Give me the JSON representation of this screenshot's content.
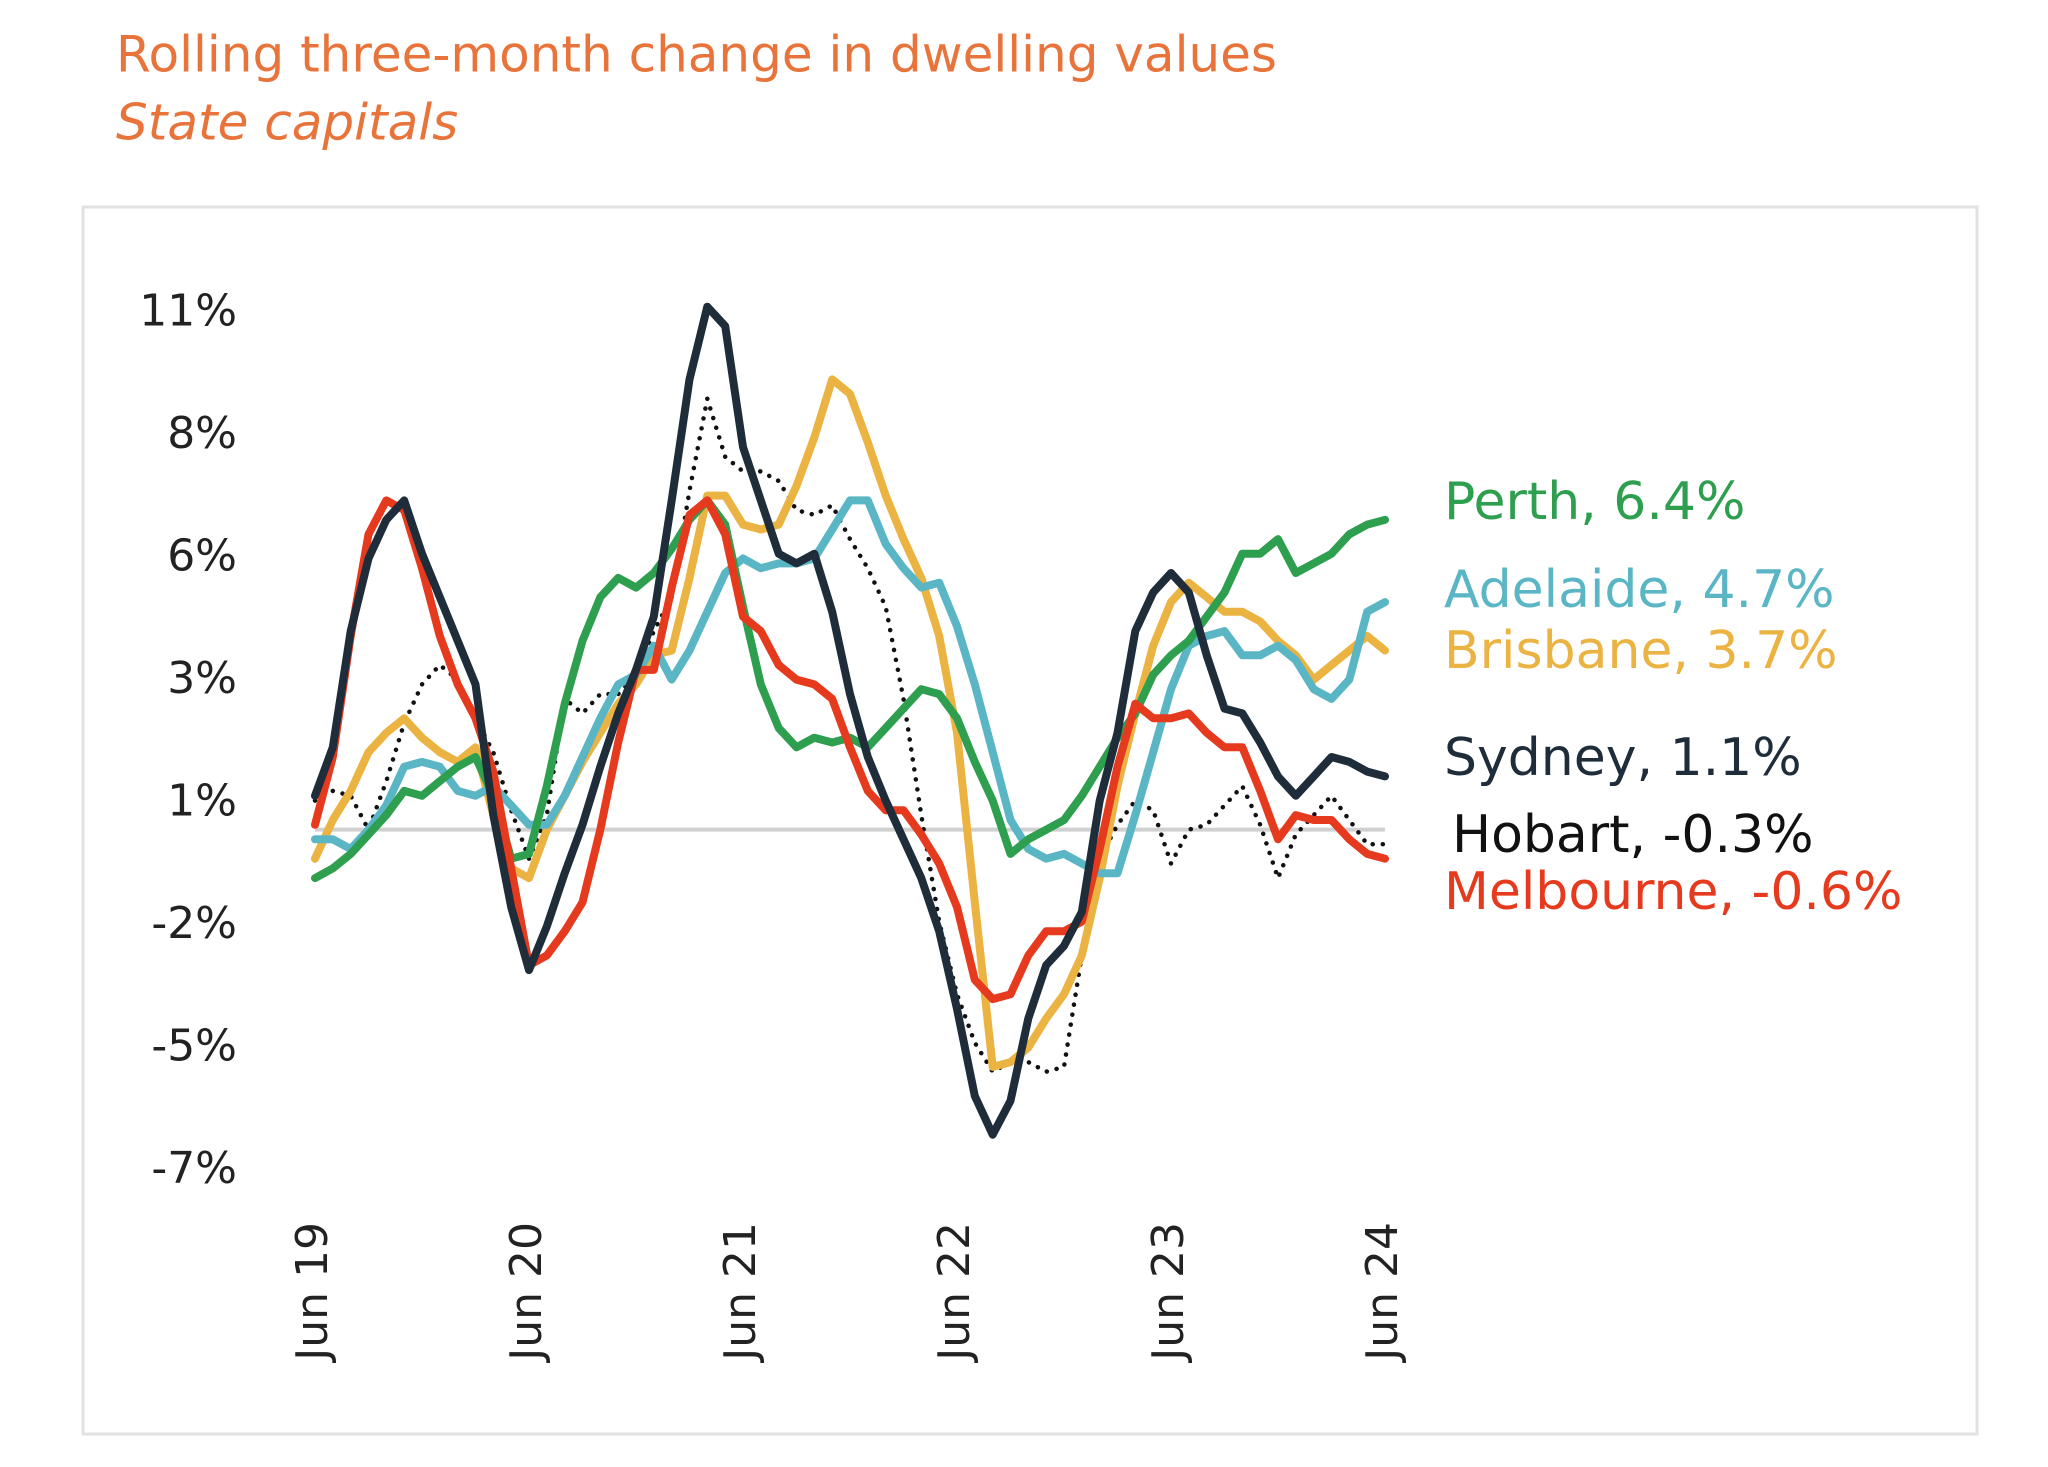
{
  "chart_data": {
    "type": "line",
    "title": "Rolling three-month change in dwelling values",
    "subtitle": "State capitals",
    "categories": [
      "Jun 19",
      null,
      null,
      null,
      null,
      null,
      null,
      null,
      null,
      null,
      null,
      null,
      "Jun 20",
      null,
      null,
      null,
      null,
      null,
      null,
      null,
      null,
      null,
      null,
      null,
      "Jun 21",
      null,
      null,
      null,
      null,
      null,
      null,
      null,
      null,
      null,
      null,
      null,
      "Jun 22",
      null,
      null,
      null,
      null,
      null,
      null,
      null,
      null,
      null,
      null,
      null,
      "Jun 23",
      null,
      null,
      null,
      null,
      null,
      null,
      null,
      null,
      null,
      null,
      null,
      "Jun 24"
    ],
    "ylim": [
      -8,
      11.6
    ],
    "yticks": [
      {
        "value": 10.66,
        "label": "11%"
      },
      {
        "value": 8.13,
        "label": "8%"
      },
      {
        "value": 5.6,
        "label": "6%"
      },
      {
        "value": 3.07,
        "label": "3%"
      },
      {
        "value": 0.54,
        "label": "1%"
      },
      {
        "value": -1.99,
        "label": "-2%"
      },
      {
        "value": -4.52,
        "label": "-5%"
      },
      {
        "value": -7.05,
        "label": "-7%"
      }
    ],
    "series": [
      {
        "name": "Hobart, -0.3%",
        "color": "#111111",
        "dashed": true,
        "values": [
          0.6,
          0.8,
          0.7,
          0.0,
          1.0,
          2.2,
          3.0,
          3.4,
          3.1,
          2.3,
          1.6,
          0.4,
          -0.6,
          0.3,
          2.7,
          2.4,
          2.8,
          2.8,
          3.2,
          4.1,
          4.8,
          7.0,
          8.9,
          7.7,
          7.4,
          7.4,
          7.2,
          6.6,
          6.5,
          6.7,
          6.0,
          5.4,
          4.6,
          2.7,
          0.3,
          -1.9,
          -3.4,
          -4.4,
          -5.0,
          -4.8,
          -4.8,
          -5.0,
          -4.9,
          -2.6,
          -0.6,
          0.1,
          0.6,
          0.4,
          -0.7,
          0.0,
          0.1,
          0.5,
          0.9,
          0.1,
          -1.0,
          -0.1,
          0.3,
          0.7,
          0.2,
          -0.3,
          -0.3
        ]
      },
      {
        "name": "Brisbane, 3.7%",
        "color": "#ebb342",
        "values": [
          -0.6,
          0.2,
          0.8,
          1.6,
          2.0,
          2.3,
          1.9,
          1.6,
          1.4,
          1.7,
          0.3,
          -0.8,
          -1.0,
          0.0,
          0.7,
          1.4,
          2.0,
          2.6,
          3.0,
          3.6,
          3.7,
          5.2,
          6.9,
          6.9,
          6.3,
          6.2,
          6.3,
          7.1,
          8.1,
          9.3,
          9.0,
          8.0,
          6.9,
          6.0,
          5.2,
          4.0,
          2.0,
          -1.5,
          -4.9,
          -4.8,
          -4.5,
          -3.9,
          -3.4,
          -2.6,
          -1.0,
          0.9,
          2.4,
          3.8,
          4.7,
          5.1,
          4.8,
          4.5,
          4.5,
          4.3,
          3.9,
          3.6,
          3.1,
          3.4,
          3.7,
          4.0,
          3.7
        ]
      },
      {
        "name": "Adelaide, 4.7%",
        "color": "#5ab5c4",
        "values": [
          -0.2,
          -0.2,
          -0.4,
          0.0,
          0.5,
          1.3,
          1.4,
          1.3,
          0.8,
          0.7,
          0.9,
          0.5,
          0.1,
          0.1,
          0.7,
          1.5,
          2.3,
          3.0,
          3.2,
          3.8,
          3.1,
          3.7,
          4.5,
          5.3,
          5.6,
          5.4,
          5.5,
          5.5,
          5.6,
          6.2,
          6.8,
          6.8,
          5.9,
          5.4,
          5.0,
          5.1,
          4.2,
          3.0,
          1.6,
          0.2,
          -0.4,
          -0.6,
          -0.5,
          -0.7,
          -0.9,
          -0.9,
          0.3,
          1.6,
          2.9,
          3.8,
          4.0,
          4.1,
          3.6,
          3.6,
          3.8,
          3.5,
          2.9,
          2.7,
          3.1,
          4.5,
          4.7
        ]
      },
      {
        "name": "Perth, 6.4%",
        "color": "#2e9e4f",
        "values": [
          -1.0,
          -0.8,
          -0.5,
          -0.1,
          0.3,
          0.8,
          0.7,
          1.0,
          1.3,
          1.5,
          0.7,
          -0.6,
          -0.5,
          0.9,
          2.6,
          3.9,
          4.8,
          5.2,
          5.0,
          5.3,
          5.8,
          6.4,
          6.8,
          6.3,
          4.6,
          3.0,
          2.1,
          1.7,
          1.9,
          1.8,
          1.9,
          1.7,
          2.1,
          2.5,
          2.9,
          2.8,
          2.3,
          1.4,
          0.6,
          -0.5,
          -0.2,
          0.0,
          0.2,
          0.7,
          1.3,
          1.9,
          2.4,
          3.2,
          3.6,
          3.9,
          4.4,
          4.9,
          5.7,
          5.7,
          6.0,
          5.3,
          5.5,
          5.7,
          6.1,
          6.3,
          6.4
        ]
      },
      {
        "name": "Melbourne, -0.6%",
        "color": "#e63a1e",
        "values": [
          0.1,
          1.5,
          4.0,
          6.1,
          6.8,
          6.6,
          5.4,
          4.0,
          3.0,
          2.3,
          1.2,
          -0.8,
          -2.8,
          -2.6,
          -2.1,
          -1.5,
          0.0,
          1.8,
          3.3,
          3.3,
          5.0,
          6.5,
          6.8,
          6.1,
          4.4,
          4.1,
          3.4,
          3.1,
          3.0,
          2.7,
          1.7,
          0.8,
          0.4,
          0.4,
          -0.1,
          -0.7,
          -1.6,
          -3.1,
          -3.5,
          -3.4,
          -2.6,
          -2.1,
          -2.1,
          -1.9,
          -0.4,
          1.3,
          2.6,
          2.3,
          2.3,
          2.4,
          2.0,
          1.7,
          1.7,
          0.8,
          -0.2,
          0.3,
          0.2,
          0.2,
          -0.2,
          -0.5,
          -0.6
        ]
      },
      {
        "name": "Sydney, 1.1%",
        "color": "#1f2d3a",
        "values": [
          0.7,
          1.7,
          4.1,
          5.6,
          6.4,
          6.8,
          5.7,
          4.8,
          3.9,
          3.0,
          0.3,
          -1.6,
          -2.9,
          -2.0,
          -0.9,
          0.1,
          1.3,
          2.4,
          3.3,
          4.4,
          6.8,
          9.3,
          10.8,
          10.4,
          7.9,
          6.8,
          5.7,
          5.5,
          5.7,
          4.5,
          2.8,
          1.5,
          0.6,
          -0.2,
          -1.0,
          -2.1,
          -3.7,
          -5.5,
          -6.3,
          -5.6,
          -3.9,
          -2.8,
          -2.4,
          -1.7,
          0.6,
          2.0,
          4.1,
          4.9,
          5.3,
          4.9,
          3.6,
          2.5,
          2.4,
          1.8,
          1.1,
          0.7,
          1.1,
          1.5,
          1.4,
          1.2,
          1.1
        ]
      }
    ]
  }
}
